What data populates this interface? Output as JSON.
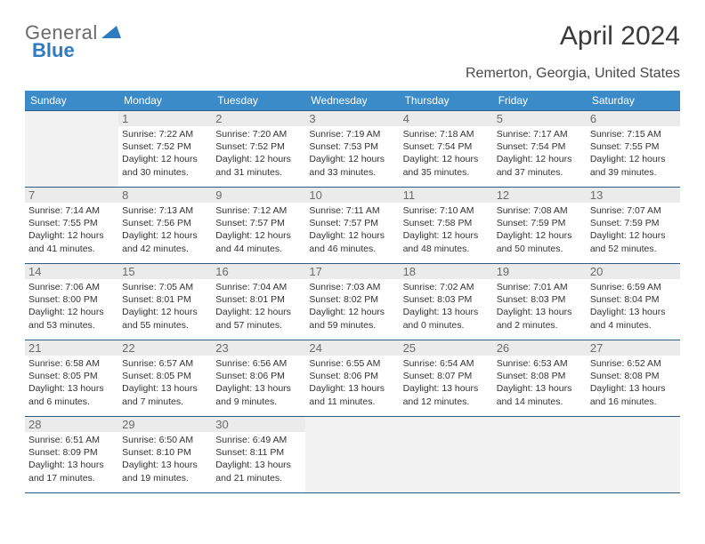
{
  "logo": {
    "general": "General",
    "blue": "Blue"
  },
  "title": "April 2024",
  "location": "Remerton, Georgia, United States",
  "colors": {
    "header_bg": "#3b8bc9",
    "header_text": "#ffffff",
    "border": "#2f5a80",
    "empty_bg": "#f2f2f2",
    "daynum_bg": "#ebebeb",
    "text": "#333333",
    "logo_general": "#6b6b6b",
    "logo_blue": "#2f7bbf"
  },
  "weekdays": [
    "Sunday",
    "Monday",
    "Tuesday",
    "Wednesday",
    "Thursday",
    "Friday",
    "Saturday"
  ],
  "weeks": [
    [
      null,
      {
        "n": "1",
        "sr": "Sunrise: 7:22 AM",
        "ss": "Sunset: 7:52 PM",
        "d1": "Daylight: 12 hours",
        "d2": "and 30 minutes."
      },
      {
        "n": "2",
        "sr": "Sunrise: 7:20 AM",
        "ss": "Sunset: 7:52 PM",
        "d1": "Daylight: 12 hours",
        "d2": "and 31 minutes."
      },
      {
        "n": "3",
        "sr": "Sunrise: 7:19 AM",
        "ss": "Sunset: 7:53 PM",
        "d1": "Daylight: 12 hours",
        "d2": "and 33 minutes."
      },
      {
        "n": "4",
        "sr": "Sunrise: 7:18 AM",
        "ss": "Sunset: 7:54 PM",
        "d1": "Daylight: 12 hours",
        "d2": "and 35 minutes."
      },
      {
        "n": "5",
        "sr": "Sunrise: 7:17 AM",
        "ss": "Sunset: 7:54 PM",
        "d1": "Daylight: 12 hours",
        "d2": "and 37 minutes."
      },
      {
        "n": "6",
        "sr": "Sunrise: 7:15 AM",
        "ss": "Sunset: 7:55 PM",
        "d1": "Daylight: 12 hours",
        "d2": "and 39 minutes."
      }
    ],
    [
      {
        "n": "7",
        "sr": "Sunrise: 7:14 AM",
        "ss": "Sunset: 7:55 PM",
        "d1": "Daylight: 12 hours",
        "d2": "and 41 minutes."
      },
      {
        "n": "8",
        "sr": "Sunrise: 7:13 AM",
        "ss": "Sunset: 7:56 PM",
        "d1": "Daylight: 12 hours",
        "d2": "and 42 minutes."
      },
      {
        "n": "9",
        "sr": "Sunrise: 7:12 AM",
        "ss": "Sunset: 7:57 PM",
        "d1": "Daylight: 12 hours",
        "d2": "and 44 minutes."
      },
      {
        "n": "10",
        "sr": "Sunrise: 7:11 AM",
        "ss": "Sunset: 7:57 PM",
        "d1": "Daylight: 12 hours",
        "d2": "and 46 minutes."
      },
      {
        "n": "11",
        "sr": "Sunrise: 7:10 AM",
        "ss": "Sunset: 7:58 PM",
        "d1": "Daylight: 12 hours",
        "d2": "and 48 minutes."
      },
      {
        "n": "12",
        "sr": "Sunrise: 7:08 AM",
        "ss": "Sunset: 7:59 PM",
        "d1": "Daylight: 12 hours",
        "d2": "and 50 minutes."
      },
      {
        "n": "13",
        "sr": "Sunrise: 7:07 AM",
        "ss": "Sunset: 7:59 PM",
        "d1": "Daylight: 12 hours",
        "d2": "and 52 minutes."
      }
    ],
    [
      {
        "n": "14",
        "sr": "Sunrise: 7:06 AM",
        "ss": "Sunset: 8:00 PM",
        "d1": "Daylight: 12 hours",
        "d2": "and 53 minutes."
      },
      {
        "n": "15",
        "sr": "Sunrise: 7:05 AM",
        "ss": "Sunset: 8:01 PM",
        "d1": "Daylight: 12 hours",
        "d2": "and 55 minutes."
      },
      {
        "n": "16",
        "sr": "Sunrise: 7:04 AM",
        "ss": "Sunset: 8:01 PM",
        "d1": "Daylight: 12 hours",
        "d2": "and 57 minutes."
      },
      {
        "n": "17",
        "sr": "Sunrise: 7:03 AM",
        "ss": "Sunset: 8:02 PM",
        "d1": "Daylight: 12 hours",
        "d2": "and 59 minutes."
      },
      {
        "n": "18",
        "sr": "Sunrise: 7:02 AM",
        "ss": "Sunset: 8:03 PM",
        "d1": "Daylight: 13 hours",
        "d2": "and 0 minutes."
      },
      {
        "n": "19",
        "sr": "Sunrise: 7:01 AM",
        "ss": "Sunset: 8:03 PM",
        "d1": "Daylight: 13 hours",
        "d2": "and 2 minutes."
      },
      {
        "n": "20",
        "sr": "Sunrise: 6:59 AM",
        "ss": "Sunset: 8:04 PM",
        "d1": "Daylight: 13 hours",
        "d2": "and 4 minutes."
      }
    ],
    [
      {
        "n": "21",
        "sr": "Sunrise: 6:58 AM",
        "ss": "Sunset: 8:05 PM",
        "d1": "Daylight: 13 hours",
        "d2": "and 6 minutes."
      },
      {
        "n": "22",
        "sr": "Sunrise: 6:57 AM",
        "ss": "Sunset: 8:05 PM",
        "d1": "Daylight: 13 hours",
        "d2": "and 7 minutes."
      },
      {
        "n": "23",
        "sr": "Sunrise: 6:56 AM",
        "ss": "Sunset: 8:06 PM",
        "d1": "Daylight: 13 hours",
        "d2": "and 9 minutes."
      },
      {
        "n": "24",
        "sr": "Sunrise: 6:55 AM",
        "ss": "Sunset: 8:06 PM",
        "d1": "Daylight: 13 hours",
        "d2": "and 11 minutes."
      },
      {
        "n": "25",
        "sr": "Sunrise: 6:54 AM",
        "ss": "Sunset: 8:07 PM",
        "d1": "Daylight: 13 hours",
        "d2": "and 12 minutes."
      },
      {
        "n": "26",
        "sr": "Sunrise: 6:53 AM",
        "ss": "Sunset: 8:08 PM",
        "d1": "Daylight: 13 hours",
        "d2": "and 14 minutes."
      },
      {
        "n": "27",
        "sr": "Sunrise: 6:52 AM",
        "ss": "Sunset: 8:08 PM",
        "d1": "Daylight: 13 hours",
        "d2": "and 16 minutes."
      }
    ],
    [
      {
        "n": "28",
        "sr": "Sunrise: 6:51 AM",
        "ss": "Sunset: 8:09 PM",
        "d1": "Daylight: 13 hours",
        "d2": "and 17 minutes."
      },
      {
        "n": "29",
        "sr": "Sunrise: 6:50 AM",
        "ss": "Sunset: 8:10 PM",
        "d1": "Daylight: 13 hours",
        "d2": "and 19 minutes."
      },
      {
        "n": "30",
        "sr": "Sunrise: 6:49 AM",
        "ss": "Sunset: 8:11 PM",
        "d1": "Daylight: 13 hours",
        "d2": "and 21 minutes."
      },
      null,
      null,
      null,
      null
    ]
  ]
}
